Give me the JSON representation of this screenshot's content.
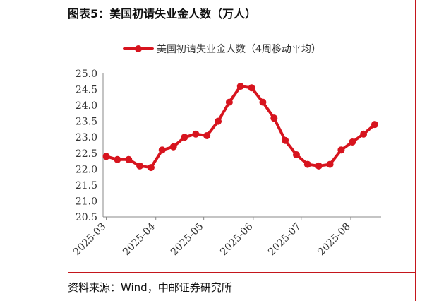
{
  "header": {
    "title": "图表5：美国初请失业金人数（万人）"
  },
  "footer": {
    "source": "资料来源：Wind，中邮证券研究所"
  },
  "chart_data": {
    "type": "line",
    "title": "图表5：美国初请失业金人数（万人）",
    "xlabel": "",
    "ylabel": "",
    "ylim": [
      20.5,
      25.0
    ],
    "yticks": [
      "20.5",
      "21.0",
      "21.5",
      "22.0",
      "22.5",
      "23.0",
      "23.5",
      "24.0",
      "24.5",
      "25.0"
    ],
    "xticks": [
      "2025-03",
      "2025-04",
      "2025-05",
      "2025-06",
      "2025-07",
      "2025-08"
    ],
    "grid": false,
    "legend_position": "top",
    "color": "#d7141e",
    "series": [
      {
        "name": "美国初请失业金人数（4周移动平均）",
        "x": [
          "2025-03-01",
          "2025-03-08",
          "2025-03-15",
          "2025-03-22",
          "2025-03-29",
          "2025-04-05",
          "2025-04-12",
          "2025-04-19",
          "2025-04-26",
          "2025-05-03",
          "2025-05-10",
          "2025-05-17",
          "2025-05-24",
          "2025-05-31",
          "2025-06-07",
          "2025-06-14",
          "2025-06-21",
          "2025-06-28",
          "2025-07-05",
          "2025-07-12",
          "2025-07-19",
          "2025-07-26",
          "2025-08-02",
          "2025-08-09",
          "2025-08-16"
        ],
        "values": [
          22.4,
          22.3,
          22.3,
          22.1,
          22.05,
          22.6,
          22.7,
          23.0,
          23.1,
          23.05,
          23.5,
          24.1,
          24.6,
          24.55,
          24.1,
          23.6,
          22.9,
          22.45,
          22.15,
          22.1,
          22.15,
          22.6,
          22.85,
          23.1,
          23.4
        ]
      }
    ]
  }
}
